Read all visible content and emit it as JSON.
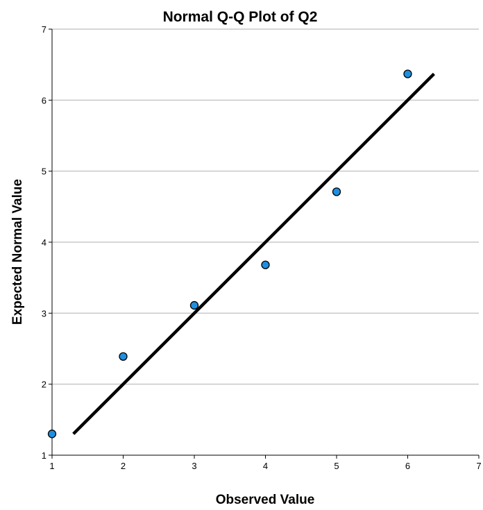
{
  "chart_data": {
    "type": "scatter",
    "title": "Normal Q-Q Plot of Q2",
    "xlabel": "Observed Value",
    "ylabel": "Expected Normal Value",
    "xlim": [
      1,
      7
    ],
    "ylim": [
      1,
      7
    ],
    "xticks": [
      "1",
      "2",
      "3",
      "4",
      "5",
      "6",
      "7"
    ],
    "yticks": [
      "1",
      "2",
      "3",
      "4",
      "5",
      "6",
      "7"
    ],
    "grid": "horizontal",
    "points": [
      {
        "x": 1,
        "y": 1.3
      },
      {
        "x": 2,
        "y": 2.39
      },
      {
        "x": 3,
        "y": 3.11
      },
      {
        "x": 4,
        "y": 3.68
      },
      {
        "x": 5,
        "y": 4.71
      },
      {
        "x": 6,
        "y": 6.37
      }
    ],
    "reference_line": {
      "from": [
        1.3,
        1.3
      ],
      "to": [
        6.37,
        6.37
      ]
    },
    "colors": {
      "point_fill": "#1f8fe0",
      "point_stroke": "#000000",
      "line": "#000000",
      "grid": "#c8c8c8"
    }
  }
}
